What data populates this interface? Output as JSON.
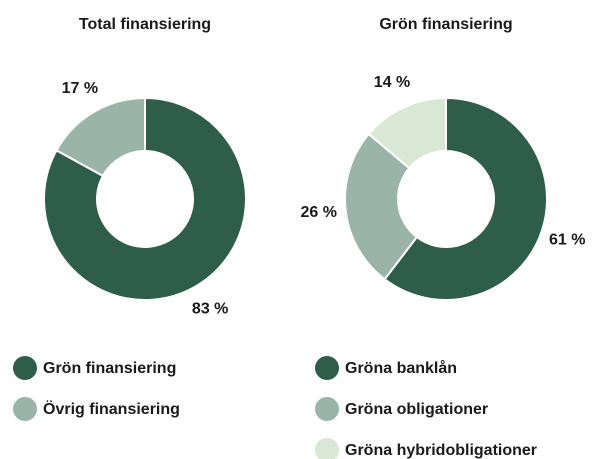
{
  "chart_data": [
    {
      "type": "donut",
      "title": "Total finansiering",
      "categories": [
        "Grön finansiering",
        "Övrig finansiering"
      ],
      "values": [
        83,
        17
      ],
      "value_labels": [
        "83 %",
        "17 %"
      ],
      "colors": [
        "#2e5d4a",
        "#9ab4a9"
      ]
    },
    {
      "type": "donut",
      "title": "Grön finansiering",
      "categories": [
        "Gröna banklån",
        "Gröna obligationer",
        "Gröna hybridobligationer"
      ],
      "values": [
        61,
        26,
        14
      ],
      "value_labels": [
        "61 %",
        "26 %",
        "14 %"
      ],
      "colors": [
        "#2e5d4a",
        "#9ab4a9",
        "#d9e8d5"
      ]
    }
  ]
}
